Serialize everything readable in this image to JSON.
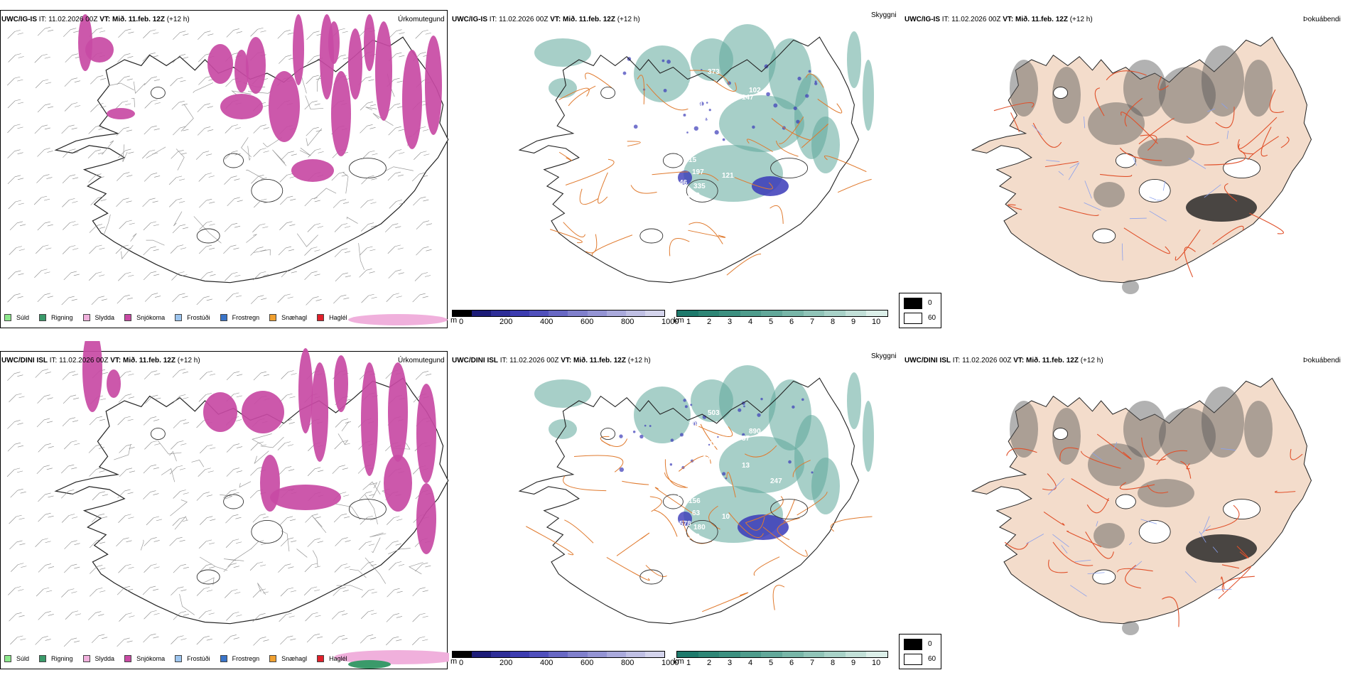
{
  "rows": [
    {
      "id": "ig-is",
      "model": "UWC/IG-IS",
      "init_label": "IT:",
      "init_value": "11.02.2026 00Z",
      "valid_label": "VT:",
      "valid_value": "Mið. 11.feb. 12Z",
      "lead": "(+12 h)",
      "cloud_numbers": [
        "373",
        "102",
        "363",
        "147",
        "180",
        "124",
        "544",
        "15",
        "197",
        "121",
        "46",
        "335",
        "842",
        "1",
        "44"
      ]
    },
    {
      "id": "dini-isl",
      "model": "UWC/DINI ISL",
      "init_label": "IT:",
      "init_value": "11.02.2026 00Z",
      "valid_label": "VT:",
      "valid_value": "Mið. 11.feb. 12Z",
      "lead": "(+12 h)",
      "cloud_numbers": [
        "503",
        "890",
        "171",
        "37",
        "18",
        "144",
        "264",
        "156",
        "63",
        "10",
        "578",
        "180",
        "363",
        "110",
        "102",
        "13",
        "247"
      ]
    }
  ],
  "panel_titles": {
    "precip": "Úrkomutegund",
    "cloud": "Skyggni",
    "fog": "Þokuábendi"
  },
  "precip_legend": [
    {
      "label": "Súld",
      "color": "#8ce88c"
    },
    {
      "label": "Rigning",
      "color": "#3a9a6a"
    },
    {
      "label": "Slydda",
      "color": "#f0b0dc"
    },
    {
      "label": "Snjókoma",
      "color": "#c84aa4"
    },
    {
      "label": "Frostúði",
      "color": "#9cc4ee"
    },
    {
      "label": "Frostregn",
      "color": "#3a74c8"
    },
    {
      "label": "Snæhagl",
      "color": "#f0a030"
    },
    {
      "label": "Haglél",
      "color": "#e0202a"
    }
  ],
  "cloud_base_bar": {
    "unit": "m",
    "ticks": [
      "0",
      "200",
      "400",
      "600",
      "800",
      "1000"
    ],
    "colors": [
      "#000000",
      "#1c1c78",
      "#2e2e98",
      "#3c3cb0",
      "#5050bc",
      "#6868c4",
      "#8080cc",
      "#9494d4",
      "#aaaadc",
      "#c0c0e4",
      "#d4d4ec"
    ]
  },
  "visibility_bar": {
    "unit": "km",
    "ticks": [
      "1",
      "2",
      "3",
      "4",
      "5",
      "6",
      "7",
      "8",
      "9",
      "10"
    ],
    "colors": [
      "#1e7a6c",
      "#2e8676",
      "#3c9080",
      "#4e9c8c",
      "#62a89a",
      "#78b6a8",
      "#90c4b8",
      "#a8d2c8",
      "#c2e0d8",
      "#dcefe9"
    ]
  },
  "fog_legend": [
    {
      "label": "0",
      "color": "#000000"
    },
    {
      "label": "60",
      "color": "#ffffff"
    }
  ],
  "colors": {
    "snow": "#c84aa4",
    "sleet": "#f0b0dc",
    "rain": "#3a9a6a",
    "cloud_teal": "#5fa89a",
    "cloud_low": "#3a3ab8",
    "roads": "#e07a2e",
    "land_fog": "#f3dccb",
    "fog_road": "#e0502a",
    "fog_river": "#8aa0ee"
  }
}
